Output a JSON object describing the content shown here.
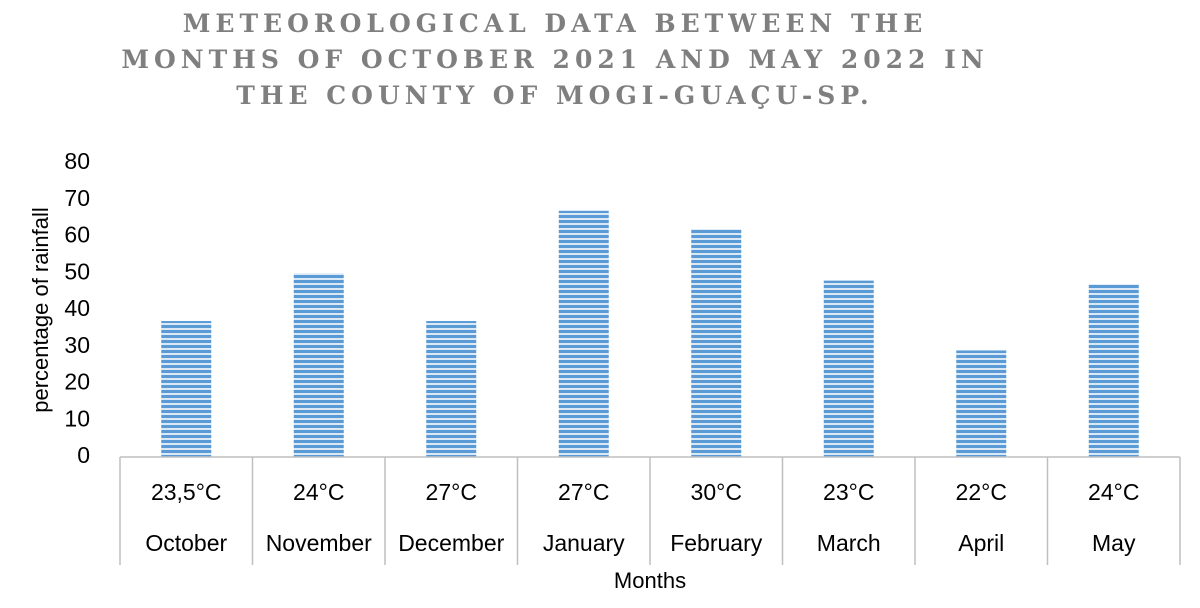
{
  "chart_data": {
    "type": "bar",
    "title": "METEOROLOGICAL DATA BETWEEN THE\nMONTHS OF OCTOBER 2021 AND MAY 2022 IN\nTHE COUNTY OF MOGI-GUAÇU-SP.",
    "xlabel": "Months",
    "ylabel": "percentage of rainfall",
    "ylim": [
      0,
      80
    ],
    "yticks": [
      0,
      10,
      20,
      30,
      40,
      50,
      60,
      70,
      80
    ],
    "categories": [
      "October",
      "November",
      "December",
      "January",
      "February",
      "March",
      "April",
      "May"
    ],
    "temperatures": [
      "23,5°C",
      "24°C",
      "27°C",
      "27°C",
      "30°C",
      "23°C",
      "22°C",
      "24°C"
    ],
    "values": [
      37,
      50,
      37,
      67,
      62,
      48,
      29,
      47
    ],
    "grid": false,
    "bar_color": "#5b9bd5"
  }
}
